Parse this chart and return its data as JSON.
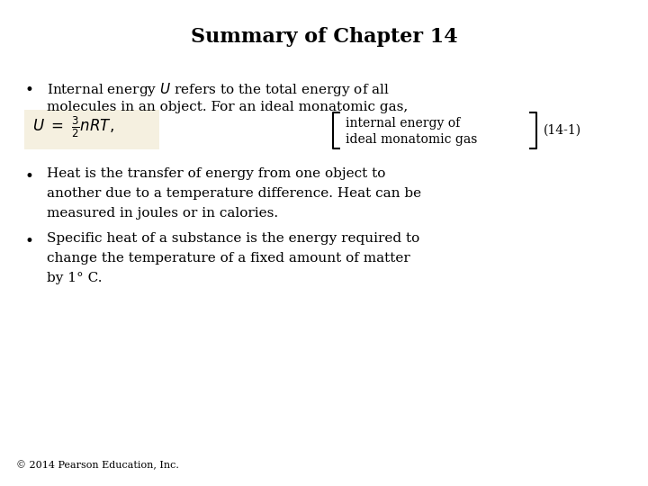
{
  "title": "Summary of Chapter 14",
  "background_color": "#ffffff",
  "title_fontsize": 16,
  "title_color": "#000000",
  "formula_box_color": "#f5f0e0",
  "bracket_text_line1": "internal energy of",
  "bracket_text_line2": "ideal monatomic gas",
  "equation_label": "(14-1)",
  "footer": "© 2014 Pearson Education, Inc.",
  "body_fontsize": 11,
  "footer_fontsize": 8
}
